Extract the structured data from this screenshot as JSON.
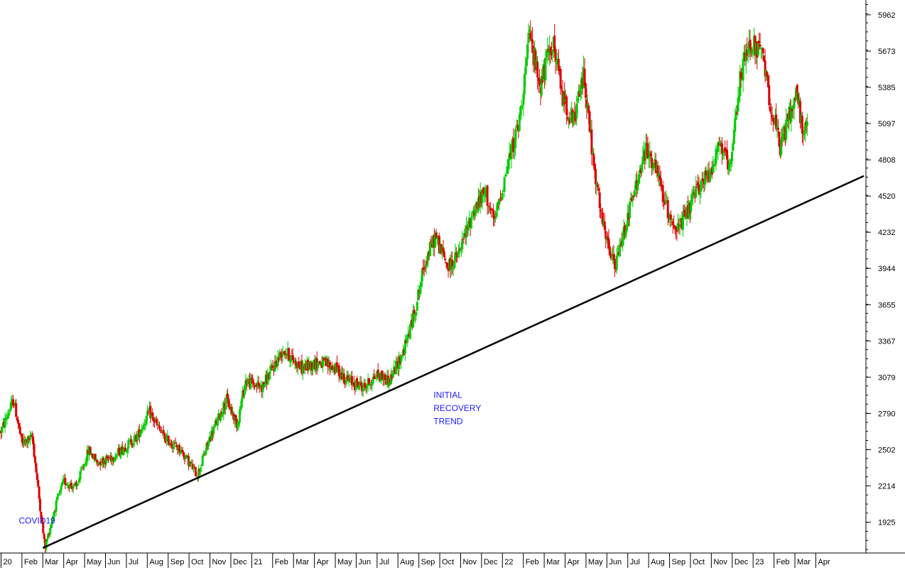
{
  "chart_data": {
    "type": "candlestick",
    "title": "",
    "xlabel": "",
    "ylabel": "",
    "ylim": [
      1680,
      6080
    ],
    "y_ticks": [
      1925,
      2214,
      2502,
      2790,
      3079,
      3367,
      3655,
      3944,
      4232,
      4520,
      4808,
      5097,
      5385,
      5673,
      5962
    ],
    "x_tick_labels": [
      "20",
      "Feb",
      "Mar",
      "Apr",
      "May",
      "Jun",
      "Jul",
      "Aug",
      "Sep",
      "Oct",
      "Nov",
      "Dec",
      "21",
      "Feb",
      "Mar",
      "Apr",
      "May",
      "Jun",
      "Jul",
      "Aug",
      "Sep",
      "Oct",
      "Nov",
      "Dec",
      "22",
      "Feb",
      "Mar",
      "Apr",
      "May",
      "Jun",
      "Jul",
      "Aug",
      "Sep",
      "Oct",
      "Nov",
      "Dec",
      "23",
      "Feb",
      "Mar",
      "Apr"
    ],
    "x_tick_positions": [
      1,
      2,
      3,
      4,
      5,
      6,
      7,
      8,
      9,
      10,
      11,
      12,
      13,
      14,
      15,
      16,
      17,
      18,
      19,
      20,
      21,
      22,
      23,
      24,
      25,
      26,
      27,
      28,
      29,
      30,
      31,
      32,
      33,
      34,
      35,
      36,
      37,
      38,
      39,
      40
    ],
    "x_range": [
      0.95,
      42.4
    ],
    "up_color": "#00cc00",
    "down_color": "#dd0000",
    "grid": false,
    "price_path": [
      [
        1.0,
        2650
      ],
      [
        1.6,
        2900
      ],
      [
        2.0,
        2550
      ],
      [
        2.5,
        2600
      ],
      [
        2.8,
        2150
      ],
      [
        3.1,
        1720
      ],
      [
        3.6,
        2050
      ],
      [
        4.0,
        2250
      ],
      [
        4.6,
        2200
      ],
      [
        5.2,
        2500
      ],
      [
        5.6,
        2400
      ],
      [
        6.4,
        2450
      ],
      [
        7.5,
        2600
      ],
      [
        8.1,
        2800
      ],
      [
        8.8,
        2600
      ],
      [
        9.6,
        2500
      ],
      [
        10.4,
        2300
      ],
      [
        11.0,
        2600
      ],
      [
        11.8,
        2900
      ],
      [
        12.3,
        2700
      ],
      [
        12.7,
        3050
      ],
      [
        13.5,
        3000
      ],
      [
        14.5,
        3300
      ],
      [
        15.4,
        3150
      ],
      [
        16.2,
        3200
      ],
      [
        17.0,
        3150
      ],
      [
        17.6,
        3050
      ],
      [
        18.4,
        3000
      ],
      [
        19.0,
        3100
      ],
      [
        19.6,
        3050
      ],
      [
        20.3,
        3300
      ],
      [
        20.8,
        3600
      ],
      [
        21.3,
        4000
      ],
      [
        21.8,
        4200
      ],
      [
        22.4,
        3950
      ],
      [
        22.9,
        4050
      ],
      [
        23.6,
        4400
      ],
      [
        24.2,
        4550
      ],
      [
        24.6,
        4300
      ],
      [
        25.3,
        4800
      ],
      [
        25.8,
        5100
      ],
      [
        26.3,
        5800
      ],
      [
        26.8,
        5400
      ],
      [
        27.4,
        5750
      ],
      [
        27.9,
        5300
      ],
      [
        28.4,
        5100
      ],
      [
        28.9,
        5500
      ],
      [
        29.4,
        4700
      ],
      [
        29.9,
        4200
      ],
      [
        30.4,
        3950
      ],
      [
        30.9,
        4300
      ],
      [
        31.4,
        4600
      ],
      [
        31.9,
        4900
      ],
      [
        32.4,
        4700
      ],
      [
        32.9,
        4400
      ],
      [
        33.4,
        4250
      ],
      [
        33.9,
        4400
      ],
      [
        34.4,
        4600
      ],
      [
        34.9,
        4700
      ],
      [
        35.4,
        4950
      ],
      [
        35.9,
        4700
      ],
      [
        36.4,
        5500
      ],
      [
        36.9,
        5750
      ],
      [
        37.4,
        5650
      ],
      [
        37.9,
        5200
      ],
      [
        38.3,
        4900
      ],
      [
        38.8,
        5200
      ],
      [
        39.1,
        5350
      ],
      [
        39.3,
        5100
      ],
      [
        39.6,
        5050
      ]
    ],
    "trendline": {
      "label": "INITIAL RECOVERY TREND",
      "from": [
        3.0,
        1720
      ],
      "to": [
        42.3,
        4680
      ],
      "color": "#000000"
    },
    "annotations": [
      {
        "text": "COVID19",
        "x": 1.85,
        "y": 1915,
        "color": "#1a1aff"
      },
      {
        "text": "INITIAL",
        "x": 21.7,
        "y": 2915,
        "color": "#1a1aff"
      },
      {
        "text": "RECOVERY",
        "x": 21.7,
        "y": 2810,
        "color": "#1a1aff"
      },
      {
        "text": "TREND",
        "x": 21.7,
        "y": 2705,
        "color": "#1a1aff"
      }
    ]
  }
}
